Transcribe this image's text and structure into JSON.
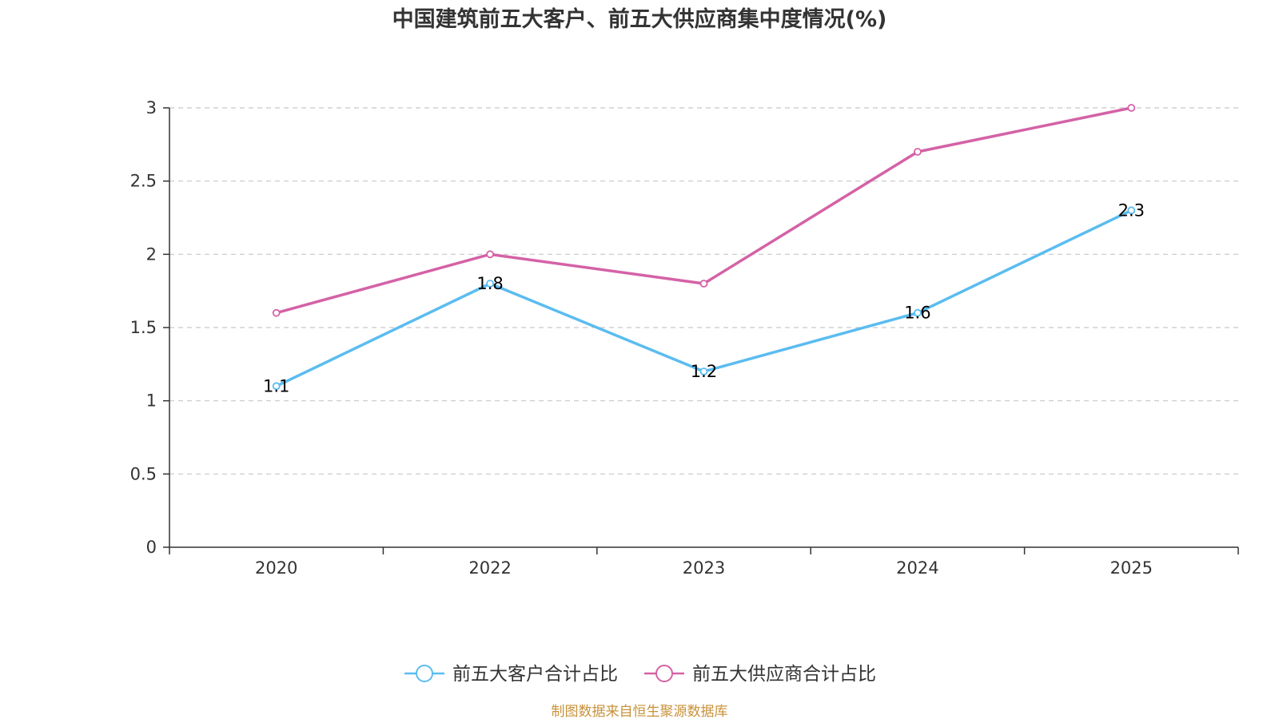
{
  "chart_data": {
    "type": "line",
    "title": "中国建筑前五大客户、前五大供应商集中度情况(%)",
    "categories": [
      "2020",
      "2022",
      "2023",
      "2024",
      "2025"
    ],
    "ylim": [
      0,
      3
    ],
    "yticks": [
      "0",
      "0.5",
      "1",
      "1.5",
      "2",
      "2.5",
      "3"
    ],
    "grid": true,
    "legend_position": "bottom-center",
    "series": [
      {
        "name": "前五大客户合计占比",
        "color": "#5bbcf0",
        "values": [
          1.1,
          1.8,
          1.2,
          1.6,
          2.3
        ],
        "labels": [
          "1.1",
          "1.8",
          "1.2",
          "1.6",
          "2.3"
        ]
      },
      {
        "name": "前五大供应商合计占比",
        "color": "#d462a6",
        "values": [
          1.6,
          2.0,
          1.8,
          2.7,
          3.0
        ]
      }
    ]
  },
  "source_text": "制图数据来自恒生聚源数据库",
  "source_color": "#c8923a"
}
